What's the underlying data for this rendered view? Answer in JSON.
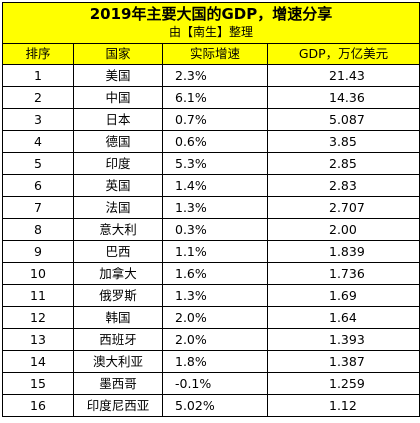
{
  "title": "2019年主要大国的GDP，增速分享",
  "subtitle": "由【南生】整理",
  "headers": {
    "rank": "排序",
    "country": "国家",
    "growth": "实际增速",
    "gdp": "GDP，万亿美元"
  },
  "rows": [
    {
      "rank": "1",
      "country": "美国",
      "growth": "2.3%",
      "gdp": "21.43"
    },
    {
      "rank": "2",
      "country": "中国",
      "growth": "6.1%",
      "gdp": "14.36"
    },
    {
      "rank": "3",
      "country": "日本",
      "growth": "0.7%",
      "gdp": "5.087"
    },
    {
      "rank": "4",
      "country": "德国",
      "growth": "0.6%",
      "gdp": "3.85"
    },
    {
      "rank": "5",
      "country": "印度",
      "growth": "5.3%",
      "gdp": "2.85"
    },
    {
      "rank": "6",
      "country": "英国",
      "growth": "1.4%",
      "gdp": "2.83"
    },
    {
      "rank": "7",
      "country": "法国",
      "growth": "1.3%",
      "gdp": "2.707"
    },
    {
      "rank": "8",
      "country": "意大利",
      "growth": "0.3%",
      "gdp": "2.00"
    },
    {
      "rank": "9",
      "country": "巴西",
      "growth": "1.1%",
      "gdp": "1.839"
    },
    {
      "rank": "10",
      "country": "加拿大",
      "growth": "1.6%",
      "gdp": "1.736"
    },
    {
      "rank": "11",
      "country": "俄罗斯",
      "growth": "1.3%",
      "gdp": "1.69"
    },
    {
      "rank": "12",
      "country": "韩国",
      "growth": "2.0%",
      "gdp": "1.64"
    },
    {
      "rank": "13",
      "country": "西班牙",
      "growth": "2.0%",
      "gdp": "1.393"
    },
    {
      "rank": "14",
      "country": "澳大利亚",
      "growth": "1.8%",
      "gdp": "1.387"
    },
    {
      "rank": "15",
      "country": "墨西哥",
      "growth": "-0.1%",
      "gdp": "1.259"
    },
    {
      "rank": "16",
      "country": "印度尼西亚",
      "growth": "5.02%",
      "gdp": "1.12"
    }
  ],
  "colors": {
    "header_fill": "#ffff00",
    "grid": "#000000",
    "text": "#000000"
  }
}
